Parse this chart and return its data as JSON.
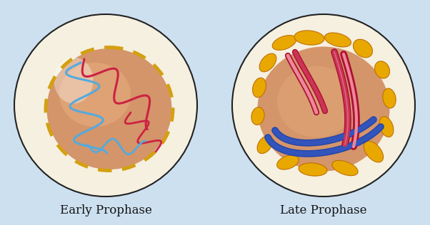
{
  "bg_color": "#cde0f0",
  "label1": "Early Prophase",
  "label2": "Late Prophase",
  "label_fontsize": 12,
  "label_color": "#111111",
  "outer_circle_color": "#f5f0e0",
  "outer_circle_edge": "#222222",
  "cytoplasm_color": "#f0e8c8",
  "nucleus1_color_center": "#d4956a",
  "nucleus1_color_edge": "#c07040",
  "nucleus2_color": "#d4956a",
  "nuclear_envelope_color": "#d4a010",
  "chromatin_red": "#cc2244",
  "chromatin_blue": "#55aadd",
  "chromosome_red": "#cc3355",
  "chromosome_blue": "#3355bb",
  "yellow_blob_color": "#e8a800",
  "yellow_blob_edge": "#c07000"
}
